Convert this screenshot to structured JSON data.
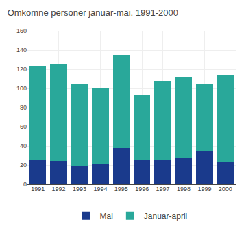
{
  "chart_data": {
    "type": "bar",
    "title": "Omkomne personer januar-mai. 1991-2000",
    "categories": [
      "1991",
      "1992",
      "1993",
      "1994",
      "1995",
      "1996",
      "1997",
      "1998",
      "1999",
      "2000"
    ],
    "series": [
      {
        "name": "Mai",
        "color": "#1a3a8c",
        "values": [
          26,
          24,
          19,
          21,
          38,
          26,
          26,
          27,
          35,
          23
        ]
      },
      {
        "name": "Januar-april",
        "color": "#29a89a",
        "values": [
          97,
          101,
          86,
          79,
          96,
          67,
          82,
          85,
          70,
          91
        ]
      }
    ],
    "stacked": true,
    "ylim": [
      0,
      160
    ],
    "yticks": [
      0,
      20,
      40,
      60,
      80,
      100,
      120,
      140,
      160
    ],
    "grid": true,
    "legend": "bottom"
  }
}
